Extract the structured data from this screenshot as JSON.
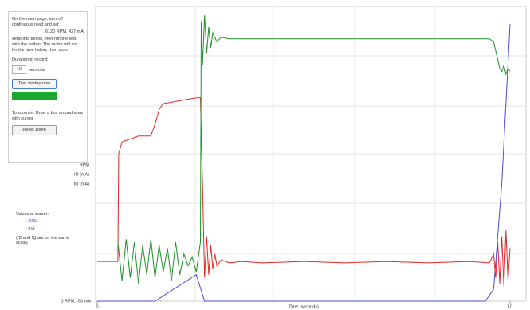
{
  "panel": {
    "instructions": "On the main page, turn off continuous read and set",
    "setpoint": "6120 RPM, 427 mA",
    "instructions_2": "setpoints below, then run the test with the button. The motor will run for the time below, then stop.",
    "duration_label": "Duration to record:",
    "duration_value": "10",
    "duration_unit": "seconds",
    "test_button": "Test startup now",
    "zoom_hint": "To zoom in: Draw a box around area with cursor",
    "reset_button": "Reset zoom",
    "cursor_title": "Values at cursor:",
    "cursor_rpm": "- RPM",
    "cursor_ma": "- mA",
    "scale_note": "(ID and IQ are on the same scale)"
  },
  "chart_data": {
    "type": "line",
    "x_label": "Time (seconds)",
    "y_min_label": "0 RPM, -60 mA",
    "xlim": [
      0,
      10
    ],
    "ylim": [
      0,
      100
    ],
    "xticks": [
      0,
      10
    ],
    "series": [
      {
        "name": "RPM",
        "color": "#4a4ae0",
        "x": [
          0,
          1.4,
          2.4,
          2.6,
          9.4,
          9.6,
          9.8,
          10
        ],
        "values": [
          0,
          0,
          9,
          0,
          0,
          4,
          40,
          94
        ]
      },
      {
        "name": "ID (mA)",
        "color": "#e02828",
        "x": [
          0,
          0.5,
          0.52,
          0.6,
          0.8,
          1.0,
          1.3,
          1.4,
          1.5,
          1.6,
          2.0,
          2.4,
          2.5,
          2.55,
          2.6,
          2.65,
          2.7,
          2.75,
          2.8,
          2.85,
          2.9,
          3.0,
          3.2,
          3.5,
          4,
          5,
          6,
          7,
          8,
          9,
          9.5,
          9.6,
          9.65,
          9.7,
          9.75,
          9.8,
          9.85,
          9.9,
          9.95,
          10
        ],
        "values": [
          13.5,
          13.5,
          50,
          54,
          55,
          56,
          56,
          60,
          65,
          67,
          68,
          69,
          69,
          40,
          8,
          22,
          9,
          19,
          11,
          16,
          12,
          14,
          13,
          13.5,
          13,
          13.5,
          13,
          13.5,
          13,
          13.5,
          13,
          16,
          8,
          20,
          6,
          22,
          5,
          24,
          7,
          18
        ]
      },
      {
        "name": "IQ (mA)",
        "color": "#1f8f2a",
        "x": [
          0.5,
          0.6,
          0.7,
          0.8,
          0.9,
          1.0,
          1.1,
          1.2,
          1.3,
          1.4,
          1.5,
          1.6,
          1.7,
          1.8,
          1.9,
          2.0,
          2.1,
          2.2,
          2.3,
          2.4,
          2.5,
          2.52,
          2.55,
          2.6,
          2.65,
          2.7,
          2.75,
          2.8,
          2.9,
          3.0,
          3.2,
          4,
          5,
          6,
          7,
          8,
          9,
          9.5,
          9.6,
          9.7,
          9.75,
          9.8,
          9.85,
          9.9,
          9.95,
          10
        ],
        "values": [
          20,
          7,
          21,
          8,
          20,
          6,
          19,
          9,
          21,
          8,
          19,
          10,
          18,
          7,
          20,
          9,
          16,
          12,
          15,
          10,
          20,
          95,
          80,
          97,
          84,
          93,
          86,
          91,
          88,
          89.5,
          89,
          89,
          89,
          89,
          89,
          89,
          89,
          89,
          88,
          82,
          79,
          78,
          80,
          77,
          79,
          78
        ]
      }
    ]
  }
}
